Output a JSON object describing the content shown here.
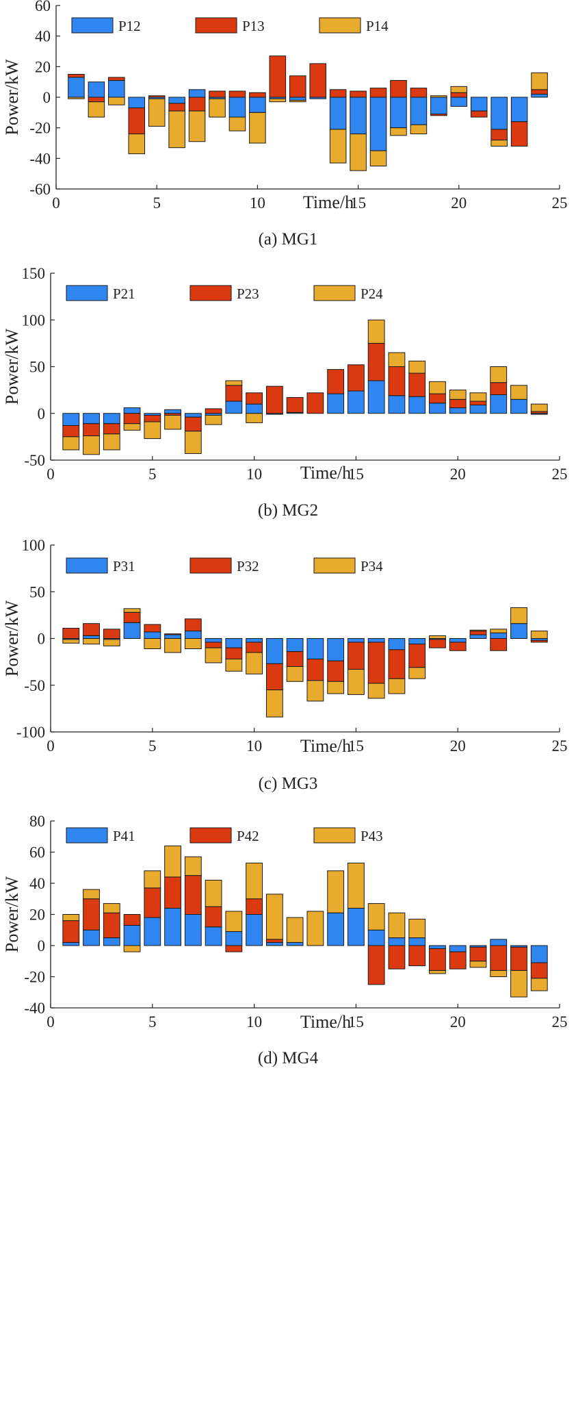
{
  "colors": {
    "series1": "#2f86f0",
    "series2": "#db3a10",
    "series3": "#e9ab2e",
    "axis": "#222222",
    "edge": "#1a1a1a"
  },
  "chart_data": [
    {
      "type": "bar",
      "stacked": true,
      "title": "(a) MG1",
      "xlabel": "Time/h",
      "ylabel": "Power/kW",
      "xlim": [
        0,
        25
      ],
      "ylim": [
        -60,
        60
      ],
      "xticks": [
        0,
        5,
        10,
        15,
        20,
        25
      ],
      "yticks": [
        -60,
        -40,
        -20,
        0,
        20,
        40,
        60
      ],
      "x": [
        1,
        2,
        3,
        4,
        5,
        6,
        7,
        8,
        9,
        10,
        11,
        12,
        13,
        14,
        15,
        16,
        17,
        18,
        19,
        20,
        21,
        22,
        23,
        24
      ],
      "legend": "top-left",
      "series": [
        {
          "name": "P12",
          "color": "#2f86f0",
          "values": [
            13,
            10,
            11,
            -7,
            -1,
            -4,
            5,
            -1,
            -13,
            -10,
            -1,
            -2,
            -1,
            -21,
            -24,
            -35,
            -20,
            -18,
            -11,
            -6,
            -9,
            -21,
            -16,
            2
          ]
        },
        {
          "name": "P13",
          "color": "#db3a10",
          "values": [
            2,
            -3,
            2,
            -17,
            1,
            -5,
            -9,
            4,
            4,
            3,
            27,
            14,
            22,
            5,
            4,
            6,
            11,
            6,
            -1,
            3,
            -4,
            -7,
            -16,
            3
          ]
        },
        {
          "name": "P14",
          "color": "#e9ab2e",
          "values": [
            -1,
            -10,
            -5,
            -13,
            -18,
            -24,
            -20,
            -12,
            -9,
            -20,
            -2,
            -1,
            0,
            -22,
            -24,
            -10,
            -5,
            -6,
            1,
            4,
            0,
            -4,
            0,
            11
          ]
        }
      ]
    },
    {
      "type": "bar",
      "stacked": true,
      "title": "(b) MG2",
      "xlabel": "Time/h",
      "ylabel": "Power/kW",
      "xlim": [
        0,
        25
      ],
      "ylim": [
        -50,
        150
      ],
      "xticks": [
        0,
        5,
        10,
        15,
        20,
        25
      ],
      "yticks": [
        -50,
        0,
        50,
        100,
        150
      ],
      "x": [
        1,
        2,
        3,
        4,
        5,
        6,
        7,
        8,
        9,
        10,
        11,
        12,
        13,
        14,
        15,
        16,
        17,
        18,
        19,
        20,
        21,
        22,
        23,
        24
      ],
      "legend": "top-left",
      "series": [
        {
          "name": "P21",
          "color": "#2f86f0",
          "values": [
            -13,
            -11,
            -11,
            6,
            -2,
            4,
            -4,
            -2,
            13,
            10,
            -1,
            1,
            0,
            21,
            24,
            35,
            19,
            18,
            11,
            6,
            9,
            20,
            15,
            -1
          ]
        },
        {
          "name": "P23",
          "color": "#db3a10",
          "values": [
            -12,
            -13,
            -11,
            -11,
            -7,
            -2,
            -15,
            5,
            17,
            12,
            29,
            16,
            22,
            26,
            28,
            40,
            31,
            25,
            10,
            9,
            4,
            13,
            0,
            2
          ]
        },
        {
          "name": "P24",
          "color": "#e9ab2e",
          "values": [
            -14,
            -20,
            -17,
            -7,
            -18,
            -15,
            -24,
            -10,
            5,
            -10,
            0,
            0,
            0,
            0,
            0,
            25,
            15,
            13,
            13,
            10,
            9,
            17,
            15,
            8
          ]
        }
      ]
    },
    {
      "type": "bar",
      "stacked": true,
      "title": "(c) MG3",
      "xlabel": "Time/h",
      "ylabel": "Power/kW",
      "xlim": [
        0,
        25
      ],
      "ylim": [
        -100,
        100
      ],
      "xticks": [
        0,
        5,
        10,
        15,
        20,
        25
      ],
      "yticks": [
        -100,
        -50,
        0,
        50,
        100
      ],
      "x": [
        1,
        2,
        3,
        4,
        5,
        6,
        7,
        8,
        9,
        10,
        11,
        12,
        13,
        14,
        15,
        16,
        17,
        18,
        19,
        20,
        21,
        22,
        23,
        24
      ],
      "legend": "top-left",
      "series": [
        {
          "name": "P31",
          "color": "#2f86f0",
          "values": [
            -1,
            3,
            -1,
            17,
            7,
            4,
            8,
            -4,
            -10,
            -4,
            -27,
            -14,
            -22,
            -24,
            -4,
            -4,
            -12,
            -6,
            -1,
            -4,
            4,
            6,
            16,
            -2
          ]
        },
        {
          "name": "P32",
          "color": "#db3a10",
          "values": [
            11,
            13,
            10,
            11,
            8,
            1,
            13,
            -6,
            -12,
            -11,
            -28,
            -16,
            -23,
            -22,
            -29,
            -44,
            -31,
            -25,
            -9,
            -9,
            4,
            -13,
            0,
            -2
          ]
        },
        {
          "name": "P34",
          "color": "#e9ab2e",
          "values": [
            -4,
            -6,
            -7,
            4,
            -11,
            -15,
            -11,
            -16,
            -13,
            -23,
            -29,
            -16,
            -22,
            -13,
            -27,
            -16,
            -16,
            -12,
            3,
            0,
            1,
            4,
            17,
            8
          ]
        }
      ]
    },
    {
      "type": "bar",
      "stacked": true,
      "title": "(d) MG4",
      "xlabel": "Time/h",
      "ylabel": "Power/kW",
      "xlim": [
        0,
        25
      ],
      "ylim": [
        -40,
        80
      ],
      "xticks": [
        0,
        5,
        10,
        15,
        20,
        25
      ],
      "yticks": [
        -40,
        -20,
        0,
        20,
        40,
        60,
        80
      ],
      "x": [
        1,
        2,
        3,
        4,
        5,
        6,
        7,
        8,
        9,
        10,
        11,
        12,
        13,
        14,
        15,
        16,
        17,
        18,
        19,
        20,
        21,
        22,
        23,
        24
      ],
      "legend": "top-left",
      "series": [
        {
          "name": "P41",
          "color": "#2f86f0",
          "values": [
            2,
            10,
            5,
            13,
            18,
            24,
            20,
            12,
            9,
            20,
            2,
            2,
            0,
            21,
            24,
            10,
            5,
            5,
            -2,
            -4,
            -1,
            4,
            -1,
            -11
          ]
        },
        {
          "name": "P42",
          "color": "#db3a10",
          "values": [
            14,
            20,
            16,
            7,
            19,
            20,
            25,
            13,
            -4,
            10,
            2,
            0,
            0,
            0,
            0,
            -25,
            -15,
            -13,
            -14,
            -11,
            -9,
            -16,
            -15,
            -10
          ]
        },
        {
          "name": "P43",
          "color": "#e9ab2e",
          "values": [
            4,
            6,
            6,
            -4,
            11,
            20,
            12,
            17,
            13,
            23,
            29,
            16,
            22,
            27,
            29,
            17,
            16,
            12,
            -2,
            0,
            -4,
            -4,
            -17,
            -8
          ]
        }
      ]
    }
  ]
}
